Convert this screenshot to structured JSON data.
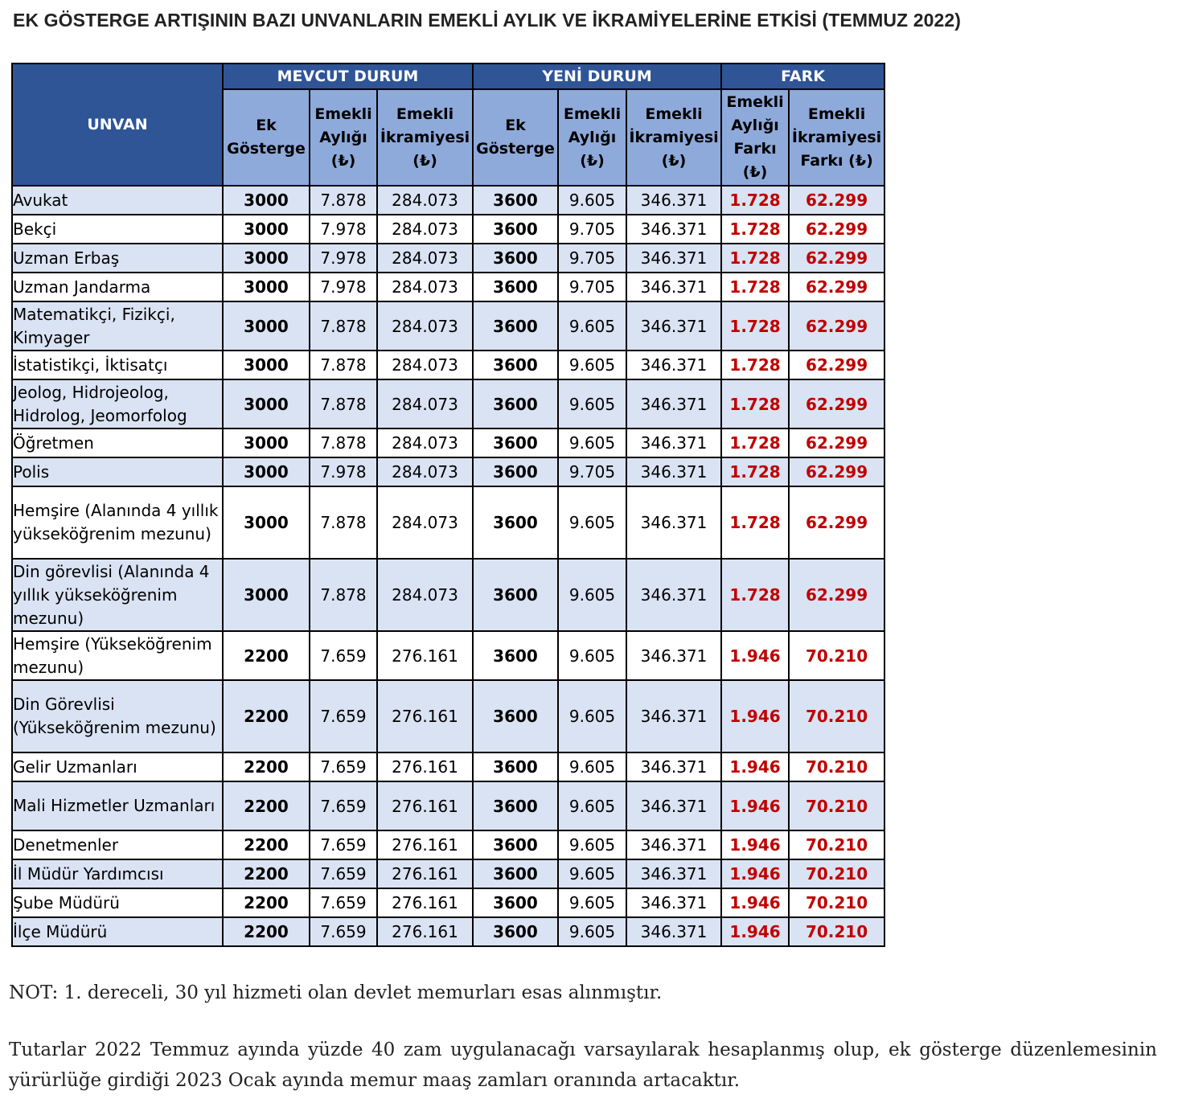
{
  "title": "EK GÖSTERGE ARTIŞININ BAZI UNVANLARIN EMEKLİ AYLIK VE İKRAMİYELERİNE ETKİSİ (TEMMUZ 2022)",
  "table": {
    "unvan_header": "UNVAN",
    "groups": {
      "mevcut": "MEVCUT DURUM",
      "yeni": "YENİ DURUM",
      "fark": "FARK"
    },
    "sub_headers": {
      "ek_gosterge": "Ek\nGösterge",
      "emekli_ayligi": "Emekli\nAylığı\n(₺)",
      "emekli_ikramiyesi": "Emekli\nİkramiyesi\n(₺)",
      "aylik_farki": "Emekli\nAylığı\nFarkı\n(₺)",
      "ikramiye_farki": "Emekli\nİkramiyesi\nFarkı (₺)"
    },
    "rows": [
      {
        "unvan": "Avukat",
        "ek_mevcut": "3000",
        "aylik_mevcut": "7.878",
        "ikramiye_mevcut": "284.073",
        "ek_yeni": "3600",
        "aylik_yeni": "9.605",
        "ikramiye_yeni": "346.371",
        "aylik_fark": "1.728",
        "ikramiye_fark": "62.299"
      },
      {
        "unvan": "Bekçi",
        "ek_mevcut": "3000",
        "aylik_mevcut": "7.978",
        "ikramiye_mevcut": "284.073",
        "ek_yeni": "3600",
        "aylik_yeni": "9.705",
        "ikramiye_yeni": "346.371",
        "aylik_fark": "1.728",
        "ikramiye_fark": "62.299"
      },
      {
        "unvan": "Uzman Erbaş",
        "ek_mevcut": "3000",
        "aylik_mevcut": "7.978",
        "ikramiye_mevcut": "284.073",
        "ek_yeni": "3600",
        "aylik_yeni": "9.705",
        "ikramiye_yeni": "346.371",
        "aylik_fark": "1.728",
        "ikramiye_fark": "62.299"
      },
      {
        "unvan": "Uzman Jandarma",
        "ek_mevcut": "3000",
        "aylik_mevcut": "7.978",
        "ikramiye_mevcut": "284.073",
        "ek_yeni": "3600",
        "aylik_yeni": "9.705",
        "ikramiye_yeni": "346.371",
        "aylik_fark": "1.728",
        "ikramiye_fark": "62.299"
      },
      {
        "unvan": "Matematikçi, Fizikçi, Kimyager",
        "ek_mevcut": "3000",
        "aylik_mevcut": "7.878",
        "ikramiye_mevcut": "284.073",
        "ek_yeni": "3600",
        "aylik_yeni": "9.605",
        "ikramiye_yeni": "346.371",
        "aylik_fark": "1.728",
        "ikramiye_fark": "62.299"
      },
      {
        "unvan": "İstatistikçi, İktisatçı",
        "ek_mevcut": "3000",
        "aylik_mevcut": "7.878",
        "ikramiye_mevcut": "284.073",
        "ek_yeni": "3600",
        "aylik_yeni": "9.605",
        "ikramiye_yeni": "346.371",
        "aylik_fark": "1.728",
        "ikramiye_fark": "62.299"
      },
      {
        "unvan": "Jeolog, Hidrojeolog, Hidrolog, Jeomorfolog",
        "ek_mevcut": "3000",
        "aylik_mevcut": "7.878",
        "ikramiye_mevcut": "284.073",
        "ek_yeni": "3600",
        "aylik_yeni": "9.605",
        "ikramiye_yeni": "346.371",
        "aylik_fark": "1.728",
        "ikramiye_fark": "62.299"
      },
      {
        "unvan": "Öğretmen",
        "ek_mevcut": "3000",
        "aylik_mevcut": "7.878",
        "ikramiye_mevcut": "284.073",
        "ek_yeni": "3600",
        "aylik_yeni": "9.605",
        "ikramiye_yeni": "346.371",
        "aylik_fark": "1.728",
        "ikramiye_fark": "62.299"
      },
      {
        "unvan": "Polis",
        "ek_mevcut": "3000",
        "aylik_mevcut": "7.978",
        "ikramiye_mevcut": "284.073",
        "ek_yeni": "3600",
        "aylik_yeni": "9.705",
        "ikramiye_yeni": "346.371",
        "aylik_fark": "1.728",
        "ikramiye_fark": "62.299"
      },
      {
        "unvan": "Hemşire (Alanında 4 yıllık yükseköğrenim mezunu)",
        "ek_mevcut": "3000",
        "aylik_mevcut": "7.878",
        "ikramiye_mevcut": "284.073",
        "ek_yeni": "3600",
        "aylik_yeni": "9.605",
        "ikramiye_yeni": "346.371",
        "aylik_fark": "1.728",
        "ikramiye_fark": "62.299"
      },
      {
        "unvan": "Din görevlisi (Alanında 4 yıllık yükseköğrenim mezunu)",
        "ek_mevcut": "3000",
        "aylik_mevcut": "7.878",
        "ikramiye_mevcut": "284.073",
        "ek_yeni": "3600",
        "aylik_yeni": "9.605",
        "ikramiye_yeni": "346.371",
        "aylik_fark": "1.728",
        "ikramiye_fark": "62.299"
      },
      {
        "unvan": "Hemşire (Yükseköğrenim mezunu)",
        "ek_mevcut": "2200",
        "aylik_mevcut": "7.659",
        "ikramiye_mevcut": "276.161",
        "ek_yeni": "3600",
        "aylik_yeni": "9.605",
        "ikramiye_yeni": "346.371",
        "aylik_fark": "1.946",
        "ikramiye_fark": "70.210"
      },
      {
        "unvan": "Din Görevlisi (Yükseköğrenim mezunu)",
        "ek_mevcut": "2200",
        "aylik_mevcut": "7.659",
        "ikramiye_mevcut": "276.161",
        "ek_yeni": "3600",
        "aylik_yeni": "9.605",
        "ikramiye_yeni": "346.371",
        "aylik_fark": "1.946",
        "ikramiye_fark": "70.210"
      },
      {
        "unvan": "Gelir Uzmanları",
        "ek_mevcut": "2200",
        "aylik_mevcut": "7.659",
        "ikramiye_mevcut": "276.161",
        "ek_yeni": "3600",
        "aylik_yeni": "9.605",
        "ikramiye_yeni": "346.371",
        "aylik_fark": "1.946",
        "ikramiye_fark": "70.210"
      },
      {
        "unvan": "Mali Hizmetler Uzmanları",
        "ek_mevcut": "2200",
        "aylik_mevcut": "7.659",
        "ikramiye_mevcut": "276.161",
        "ek_yeni": "3600",
        "aylik_yeni": "9.605",
        "ikramiye_yeni": "346.371",
        "aylik_fark": "1.946",
        "ikramiye_fark": "70.210"
      },
      {
        "unvan": "Denetmenler",
        "ek_mevcut": "2200",
        "aylik_mevcut": "7.659",
        "ikramiye_mevcut": "276.161",
        "ek_yeni": "3600",
        "aylik_yeni": "9.605",
        "ikramiye_yeni": "346.371",
        "aylik_fark": "1.946",
        "ikramiye_fark": "70.210"
      },
      {
        "unvan": "İl Müdür Yardımcısı",
        "ek_mevcut": "2200",
        "aylik_mevcut": "7.659",
        "ikramiye_mevcut": "276.161",
        "ek_yeni": "3600",
        "aylik_yeni": "9.605",
        "ikramiye_yeni": "346.371",
        "aylik_fark": "1.946",
        "ikramiye_fark": "70.210"
      },
      {
        "unvan": "Şube Müdürü",
        "ek_mevcut": "2200",
        "aylik_mevcut": "7.659",
        "ikramiye_mevcut": "276.161",
        "ek_yeni": "3600",
        "aylik_yeni": "9.605",
        "ikramiye_yeni": "346.371",
        "aylik_fark": "1.946",
        "ikramiye_fark": "70.210"
      },
      {
        "unvan": "İlçe Müdürü",
        "ek_mevcut": "2200",
        "aylik_mevcut": "7.659",
        "ikramiye_mevcut": "276.161",
        "ek_yeni": "3600",
        "aylik_yeni": "9.605",
        "ikramiye_yeni": "346.371",
        "aylik_fark": "1.946",
        "ikramiye_fark": "70.210"
      }
    ]
  },
  "note": "NOT: 1. dereceli, 30 yıl hizmeti olan devlet memurları esas alınmıştır.",
  "paragraph": "Tutarlar 2022 Temmuz ayında yüzde 40 zam uygulanacağı varsayılarak hesaplanmış olup, ek gösterge düzenlemesinin yürürlüğe girdiği 2023 Ocak ayında memur maaş zamları oranında artacaktır.",
  "colors": {
    "header_dark": "#2f5597",
    "header_light": "#8eaadb",
    "row_shade": "#dae3f3",
    "diff_text": "#c00000"
  }
}
